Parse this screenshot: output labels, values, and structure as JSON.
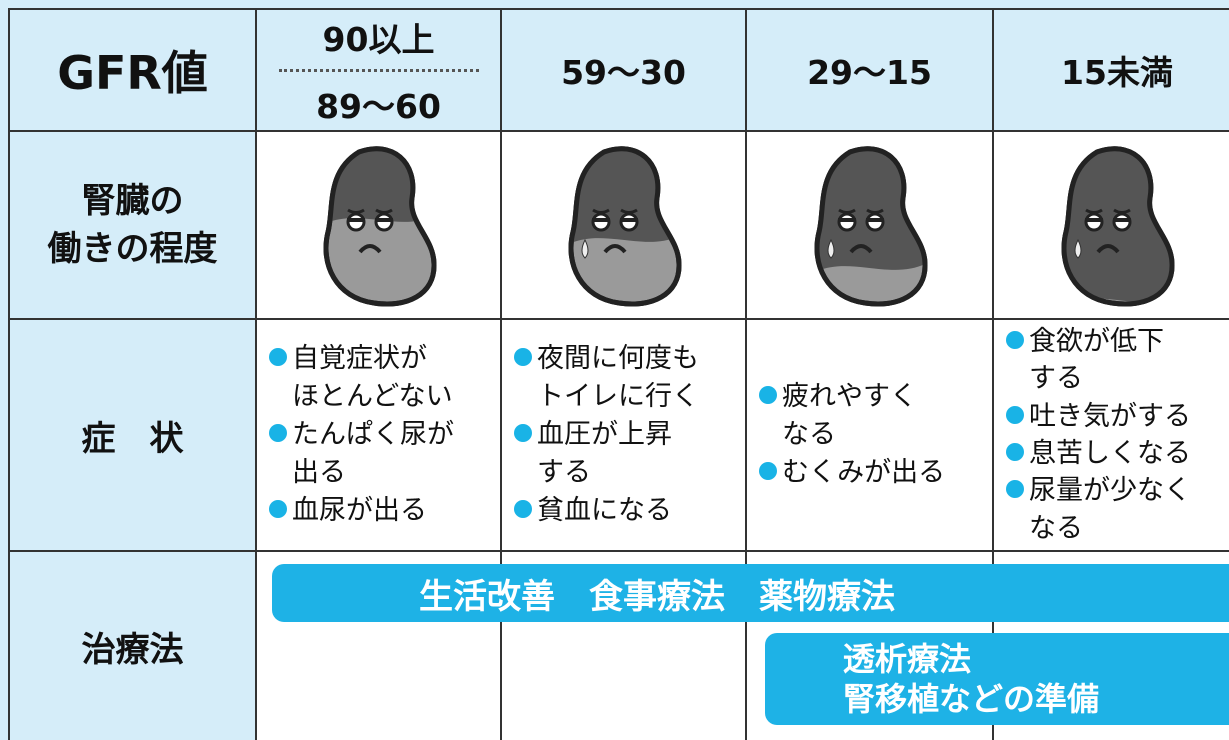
{
  "table": {
    "header": {
      "label": "GFR値",
      "ranges": [
        [
          "90以上",
          "89〜60"
        ],
        [
          "59〜30"
        ],
        [
          "29〜15"
        ],
        [
          "15未満"
        ]
      ]
    },
    "kidney_row": {
      "label": [
        "腎臓の",
        "働きの程度"
      ]
    },
    "symptom_row": {
      "label": "症　状",
      "cells": [
        [
          [
            "自覚症状が",
            "ほとんどない"
          ],
          [
            "たんぱく尿が",
            "出る"
          ],
          [
            "血尿が出る"
          ]
        ],
        [
          [
            "夜間に何度も",
            "トイレに行く"
          ],
          [
            "血圧が上昇",
            "する"
          ],
          [
            "貧血になる"
          ]
        ],
        [
          [
            "疲れやすく",
            "なる"
          ],
          [
            "むくみが出る"
          ]
        ],
        [
          [
            "食欲が低下",
            "する"
          ],
          [
            "吐き気がする"
          ],
          [
            "息苦しくなる"
          ],
          [
            "尿量が少なく",
            "なる"
          ]
        ]
      ]
    },
    "treatment_row": {
      "label": "治療法",
      "bars": [
        [
          "生活改善　食事療法　薬物療法"
        ],
        [
          "透析療法",
          "腎移植などの準備"
        ]
      ]
    }
  }
}
